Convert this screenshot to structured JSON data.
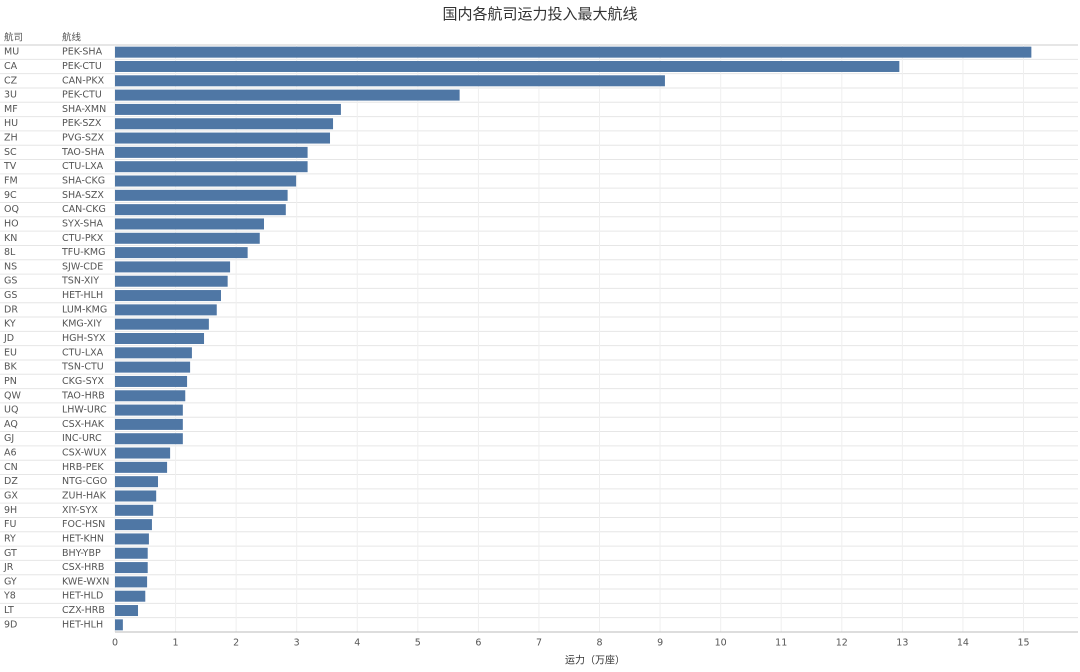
{
  "chart_data": {
    "type": "bar",
    "orientation": "horizontal",
    "title": "国内各航司运力投入最大航线",
    "row_headers": [
      "航司",
      "航线"
    ],
    "x_label": "运力（万座）",
    "airlines": [
      "MU",
      "CA",
      "CZ",
      "3U",
      "MF",
      "HU",
      "ZH",
      "SC",
      "TV",
      "FM",
      "9C",
      "OQ",
      "HO",
      "KN",
      "8L",
      "NS",
      "GS",
      "GS",
      "DR",
      "KY",
      "JD",
      "EU",
      "BK",
      "PN",
      "QW",
      "UQ",
      "AQ",
      "GJ",
      "A6",
      "CN",
      "DZ",
      "GX",
      "9H",
      "FU",
      "RY",
      "GT",
      "JR",
      "GY",
      "Y8",
      "LT",
      "9D"
    ],
    "categories": [
      "PEK-SHA",
      "PEK-CTU",
      "CAN-PKX",
      "PEK-CTU",
      "SHA-XMN",
      "PEK-SZX",
      "PVG-SZX",
      "TAO-SHA",
      "CTU-LXA",
      "SHA-CKG",
      "SHA-SZX",
      "CAN-CKG",
      "SYX-SHA",
      "CTU-PKX",
      "TFU-KMG",
      "SJW-CDE",
      "TSN-XIY",
      "HET-HLH",
      "LUM-KMG",
      "KMG-XIY",
      "HGH-SYX",
      "CTU-LXA",
      "TSN-CTU",
      "CKG-SYX",
      "TAO-HRB",
      "LHW-URC",
      "CSX-HAK",
      "INC-URC",
      "CSX-WUX",
      "HRB-PEK",
      "NTG-CGO",
      "ZUH-HAK",
      "XIY-SYX",
      "FOC-HSN",
      "HET-KHN",
      "BHY-YBP",
      "CSX-HRB",
      "KWE-WXN",
      "HET-HLD",
      "CZX-HRB",
      "HET-HLH"
    ],
    "values": [
      15.13,
      12.95,
      9.08,
      5.69,
      3.73,
      3.6,
      3.55,
      3.18,
      3.18,
      2.99,
      2.85,
      2.82,
      2.46,
      2.39,
      2.19,
      1.9,
      1.86,
      1.75,
      1.68,
      1.55,
      1.47,
      1.27,
      1.24,
      1.19,
      1.16,
      1.12,
      1.12,
      1.12,
      0.91,
      0.86,
      0.71,
      0.68,
      0.63,
      0.61,
      0.56,
      0.54,
      0.54,
      0.53,
      0.5,
      0.38,
      0.13
    ],
    "color": "#4f77a5",
    "xlim": [
      0,
      15.9
    ],
    "xticks": [
      0,
      1,
      2,
      3,
      4,
      5,
      6,
      7,
      8,
      9,
      10,
      11,
      12,
      13,
      14,
      15
    ],
    "grid": true
  }
}
